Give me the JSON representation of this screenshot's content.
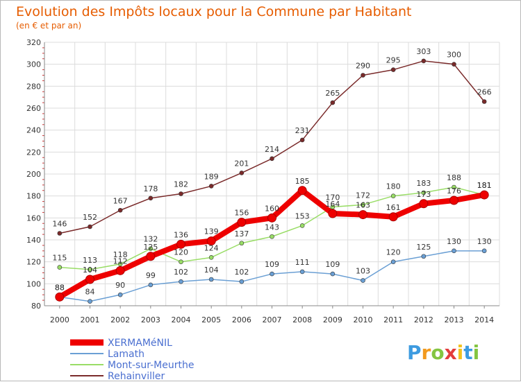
{
  "chart_data": {
    "type": "line",
    "title": "Evolution des Impôts locaux pour la Commune par Habitant",
    "subtitle": "(en € et par an)",
    "x": [
      "2000",
      "2001",
      "2002",
      "2003",
      "2004",
      "2005",
      "2006",
      "2007",
      "2008",
      "2009",
      "2010",
      "2011",
      "2012",
      "2013",
      "2014"
    ],
    "yticks": [
      "80",
      "100",
      "120",
      "140",
      "160",
      "180",
      "200",
      "220",
      "240",
      "260",
      "280",
      "300",
      "320"
    ],
    "ylim": [
      80,
      320
    ],
    "grid": true,
    "legend_position": "bottom-left",
    "series": [
      {
        "name": "XERMAMéNIL",
        "color": "#ee0000",
        "values": [
          88,
          104,
          112,
          125,
          136,
          139,
          156,
          160,
          185,
          164,
          163,
          161,
          173,
          176,
          181
        ],
        "labels": [
          "88",
          "104",
          "112",
          "125",
          "136",
          "139",
          "156",
          "160",
          "185",
          "164",
          "163",
          "161",
          "173",
          "176",
          "181"
        ]
      },
      {
        "name": "Lamath",
        "color": "#6a9fd4",
        "values": [
          88,
          84,
          90,
          99,
          102,
          104,
          102,
          109,
          111,
          109,
          103,
          120,
          125,
          130,
          130
        ],
        "labels": [
          "88",
          "84",
          "90",
          "99",
          "102",
          "104",
          "102",
          "109",
          "111",
          "109",
          "103",
          "120",
          "125",
          "130",
          "130"
        ]
      },
      {
        "name": "Mont-sur-Meurthe",
        "color": "#99dd66",
        "values": [
          115,
          113,
          118,
          132,
          120,
          124,
          137,
          143,
          153,
          170,
          172,
          180,
          183,
          188,
          181
        ],
        "labels": [
          "115",
          "113",
          "118",
          "132",
          "120",
          "124",
          "137",
          "143",
          "153",
          "170",
          "172",
          "180",
          "183",
          "188",
          "181"
        ]
      },
      {
        "name": "Rehainviller",
        "color": "#7a2a2a",
        "values": [
          146,
          152,
          167,
          178,
          182,
          189,
          201,
          214,
          231,
          265,
          290,
          295,
          303,
          300,
          266
        ],
        "labels": [
          "146",
          "152",
          "167",
          "178",
          "182",
          "189",
          "201",
          "214",
          "231",
          "265",
          "290",
          "295",
          "303",
          "300",
          "266"
        ]
      }
    ]
  },
  "logo": {
    "letters": [
      "P",
      "r",
      "o",
      "x",
      "i",
      "t",
      "i"
    ],
    "colors": [
      "#3d9be0",
      "#f29a1f",
      "#84c541",
      "#e33c3c",
      "#f2c21f",
      "#3d9be0",
      "#84c541"
    ]
  }
}
